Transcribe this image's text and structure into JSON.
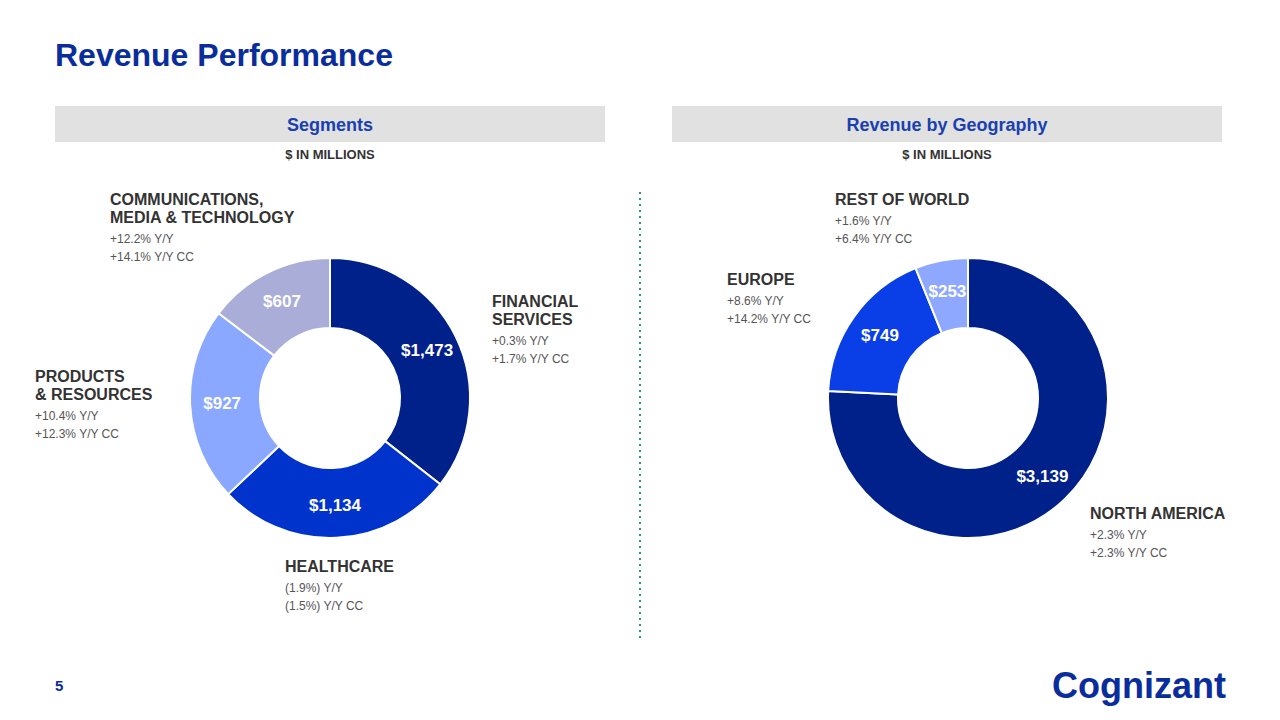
{
  "title": "Revenue Performance",
  "page_number": 5,
  "logo": "Cognizant",
  "chart_data": [
    {
      "type": "pie",
      "title": "Segments",
      "subtitle": "$ IN MILLIONS",
      "categories": [
        "FINANCIAL\nSERVICES",
        "HEALTHCARE",
        "PRODUCTS\n& RESOURCES",
        "COMMUNICATIONS,\nMEDIA & TECHNOLOGY"
      ],
      "values": [
        1473,
        1134,
        927,
        607
      ],
      "value_labels": [
        "$1,473",
        "$1,134",
        "$927",
        "$607"
      ],
      "colors": [
        "#00208a",
        "#0033cc",
        "#8aa8ff",
        "#a9add8"
      ],
      "data_labels": true,
      "annotations": [
        [
          "+0.3% Y/Y",
          "+1.7% Y/Y CC"
        ],
        [
          "(1.9%) Y/Y",
          "(1.5%) Y/Y CC"
        ],
        [
          "+10.4% Y/Y",
          "+12.3% Y/Y CC"
        ],
        [
          "+12.2% Y/Y",
          "+14.1% Y/Y CC"
        ]
      ]
    },
    {
      "type": "pie",
      "title": "Revenue by Geography",
      "subtitle": "$ IN MILLIONS",
      "categories": [
        "NORTH AMERICA",
        "EUROPE",
        "REST OF WORLD"
      ],
      "values": [
        3139,
        749,
        253
      ],
      "value_labels": [
        "$3,139",
        "$749",
        "$253"
      ],
      "colors": [
        "#00208a",
        "#0a3fe8",
        "#8fa8ff"
      ],
      "data_labels": true,
      "annotations": [
        [
          "+2.3% Y/Y",
          "+2.3% Y/Y CC"
        ],
        [
          "+8.6% Y/Y",
          "+14.2% Y/Y CC"
        ],
        [
          "+1.6% Y/Y",
          "+6.4% Y/Y CC"
        ]
      ]
    }
  ]
}
